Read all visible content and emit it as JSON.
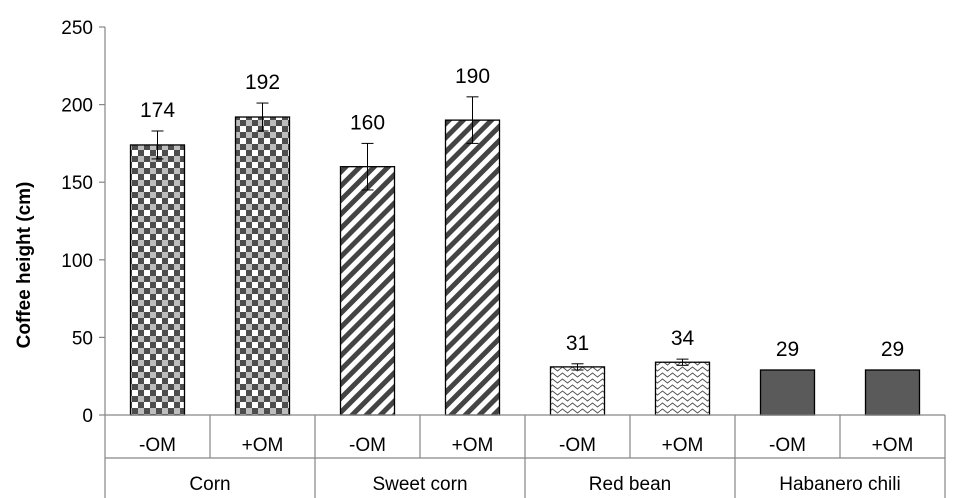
{
  "chart_data": {
    "type": "bar",
    "ylabel": "Coffee height (cm)",
    "xlabel": "",
    "ylim": [
      0,
      250
    ],
    "yticks": [
      0,
      50,
      100,
      150,
      200,
      250
    ],
    "grid": false,
    "groups": [
      {
        "name": "Corn",
        "pattern": "checker",
        "bars": [
          {
            "label": "-OM",
            "value": 174,
            "error": 9,
            "data_label": "174"
          },
          {
            "label": "+OM",
            "value": 192,
            "error": 9,
            "data_label": "192"
          }
        ]
      },
      {
        "name": "Sweet corn",
        "pattern": "diagonal",
        "bars": [
          {
            "label": "-OM",
            "value": 160,
            "error": 15,
            "data_label": "160"
          },
          {
            "label": "+OM",
            "value": 190,
            "error": 15,
            "data_label": "190"
          }
        ]
      },
      {
        "name": "Red bean",
        "pattern": "wave",
        "bars": [
          {
            "label": "-OM",
            "value": 31,
            "error": 2,
            "data_label": "31"
          },
          {
            "label": "+OM",
            "value": 34,
            "error": 2,
            "data_label": "34"
          }
        ]
      },
      {
        "name": "Habanero chili",
        "pattern": "solid",
        "bars": [
          {
            "label": "-OM",
            "value": 29,
            "error": 0,
            "data_label": "29"
          },
          {
            "label": "+OM",
            "value": 29,
            "error": 0,
            "data_label": "29"
          }
        ]
      }
    ],
    "colors": {
      "axis": "#868686",
      "bar_fill": "#5a5a5a",
      "bar_stroke": "#000000"
    }
  }
}
